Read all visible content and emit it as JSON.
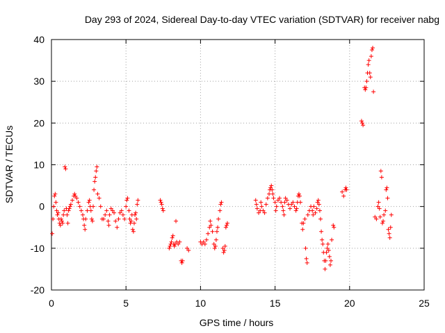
{
  "chart_data": {
    "type": "scatter",
    "title": "Day 293 of 2024, Sidereal Day-to-day VTEC variation (SDTVAR) for receiver nabg",
    "xlabel": "GPS time / hours",
    "ylabel": "SDTVAR / TECUs",
    "xlim": [
      0,
      25
    ],
    "ylim": [
      -20,
      40
    ],
    "xticks": [
      "0",
      "5",
      "10",
      "15",
      "20",
      "25"
    ],
    "yticks": [
      "-20",
      "-10",
      "0",
      "10",
      "20",
      "30",
      "40"
    ],
    "grid": true,
    "marker": "plus",
    "color": "#ff0000",
    "series": [
      {
        "name": "SDTVAR",
        "points": [
          [
            0.05,
            -6.5
          ],
          [
            0.1,
            -3
          ],
          [
            0.15,
            0
          ],
          [
            0.2,
            2.5
          ],
          [
            0.25,
            3
          ],
          [
            0.3,
            1
          ],
          [
            0.35,
            -1
          ],
          [
            0.4,
            -2
          ],
          [
            0.45,
            -1.5
          ],
          [
            0.5,
            -3
          ],
          [
            0.55,
            -4
          ],
          [
            0.6,
            -4.5
          ],
          [
            0.65,
            -3
          ],
          [
            0.7,
            -3.5
          ],
          [
            0.75,
            -4
          ],
          [
            0.8,
            -2
          ],
          [
            0.85,
            -1
          ],
          [
            0.9,
            9.5
          ],
          [
            0.95,
            9
          ],
          [
            1.0,
            -0.5
          ],
          [
            1.05,
            -2
          ],
          [
            1.1,
            -4
          ],
          [
            1.15,
            -1
          ],
          [
            1.2,
            -0.5
          ],
          [
            1.25,
            0
          ],
          [
            1.3,
            0.5
          ],
          [
            1.4,
            1.5
          ],
          [
            1.5,
            2.5
          ],
          [
            1.55,
            3
          ],
          [
            1.6,
            2.5
          ],
          [
            1.7,
            2
          ],
          [
            1.8,
            1
          ],
          [
            1.9,
            0
          ],
          [
            2.0,
            -1
          ],
          [
            2.1,
            -2
          ],
          [
            2.15,
            -3
          ],
          [
            2.2,
            -4.5
          ],
          [
            2.25,
            -5.5
          ],
          [
            2.3,
            -3
          ],
          [
            2.4,
            -1
          ],
          [
            2.5,
            1
          ],
          [
            2.55,
            1.5
          ],
          [
            2.6,
            0
          ],
          [
            2.65,
            -1
          ],
          [
            2.7,
            -3
          ],
          [
            2.75,
            -3.5
          ],
          [
            2.8,
            0
          ],
          [
            2.85,
            4
          ],
          [
            2.9,
            6
          ],
          [
            2.95,
            7
          ],
          [
            3.0,
            8.5
          ],
          [
            3.05,
            9.5
          ],
          [
            3.1,
            3
          ],
          [
            3.2,
            2
          ],
          [
            3.3,
            0
          ],
          [
            3.4,
            -3
          ],
          [
            3.5,
            -3
          ],
          [
            3.6,
            -2
          ],
          [
            3.7,
            -1
          ],
          [
            3.8,
            -3.5
          ],
          [
            3.85,
            -4.5
          ],
          [
            3.9,
            -2
          ],
          [
            4.0,
            -0.5
          ],
          [
            4.1,
            -1
          ],
          [
            4.2,
            -1.5
          ],
          [
            4.3,
            -3.5
          ],
          [
            4.4,
            -5
          ],
          [
            4.5,
            -3
          ],
          [
            4.6,
            -1.5
          ],
          [
            4.7,
            -1
          ],
          [
            4.8,
            -2
          ],
          [
            4.9,
            -3
          ],
          [
            5.0,
            0
          ],
          [
            5.05,
            1.5
          ],
          [
            5.1,
            2
          ],
          [
            5.2,
            -1
          ],
          [
            5.25,
            -3
          ],
          [
            5.3,
            -4
          ],
          [
            5.35,
            -3.5
          ],
          [
            5.4,
            -2
          ],
          [
            5.45,
            -5.5
          ],
          [
            5.5,
            -6
          ],
          [
            5.55,
            -4
          ],
          [
            5.6,
            -2
          ],
          [
            5.65,
            -1.5
          ],
          [
            5.7,
            -3
          ],
          [
            5.75,
            0.5
          ],
          [
            5.8,
            1.5
          ],
          [
            7.3,
            1.5
          ],
          [
            7.35,
            1
          ],
          [
            7.4,
            0.5
          ],
          [
            7.45,
            -0.5
          ],
          [
            7.5,
            -1
          ],
          [
            7.9,
            -10
          ],
          [
            7.95,
            -9.5
          ],
          [
            8.0,
            -9
          ],
          [
            8.05,
            -8.5
          ],
          [
            8.1,
            -7.5
          ],
          [
            8.15,
            -7
          ],
          [
            8.2,
            -9
          ],
          [
            8.25,
            -9.5
          ],
          [
            8.3,
            -9
          ],
          [
            8.35,
            -3.5
          ],
          [
            8.4,
            -8.5
          ],
          [
            8.5,
            -9
          ],
          [
            8.6,
            -8.5
          ],
          [
            8.7,
            -13
          ],
          [
            8.75,
            -13.5
          ],
          [
            8.8,
            -13
          ],
          [
            9.1,
            -10
          ],
          [
            9.2,
            -10.5
          ],
          [
            10.0,
            -8.5
          ],
          [
            10.1,
            -9
          ],
          [
            10.2,
            -8.5
          ],
          [
            10.3,
            -9
          ],
          [
            10.4,
            -8
          ],
          [
            10.5,
            -6.5
          ],
          [
            10.6,
            -5
          ],
          [
            10.65,
            -3.5
          ],
          [
            10.7,
            -4.5
          ],
          [
            10.8,
            -6
          ],
          [
            10.9,
            -9
          ],
          [
            10.95,
            -10
          ],
          [
            11.0,
            -9.5
          ],
          [
            11.05,
            -8
          ],
          [
            11.1,
            -6
          ],
          [
            11.15,
            -5
          ],
          [
            11.2,
            -3
          ],
          [
            11.3,
            -1
          ],
          [
            11.35,
            0.5
          ],
          [
            11.4,
            1
          ],
          [
            11.5,
            -10
          ],
          [
            11.55,
            -11
          ],
          [
            11.6,
            -10.5
          ],
          [
            11.65,
            -9.5
          ],
          [
            11.7,
            -5
          ],
          [
            11.75,
            -4.5
          ],
          [
            11.8,
            -4
          ],
          [
            13.7,
            1.5
          ],
          [
            13.75,
            0.5
          ],
          [
            13.8,
            -0.5
          ],
          [
            13.9,
            -1.5
          ],
          [
            14.0,
            -1
          ],
          [
            14.05,
            1
          ],
          [
            14.1,
            0
          ],
          [
            14.2,
            -1
          ],
          [
            14.3,
            -1.5
          ],
          [
            14.4,
            0.5
          ],
          [
            14.5,
            2
          ],
          [
            14.6,
            3
          ],
          [
            14.65,
            4
          ],
          [
            14.7,
            4.5
          ],
          [
            14.75,
            5
          ],
          [
            14.8,
            4
          ],
          [
            14.85,
            3
          ],
          [
            14.9,
            2
          ],
          [
            15.0,
            1
          ],
          [
            15.05,
            -1
          ],
          [
            15.1,
            0
          ],
          [
            15.2,
            1.5
          ],
          [
            15.3,
            2
          ],
          [
            15.4,
            1
          ],
          [
            15.5,
            0
          ],
          [
            15.55,
            -1
          ],
          [
            15.6,
            -2
          ],
          [
            15.65,
            1
          ],
          [
            15.7,
            2
          ],
          [
            15.8,
            1.5
          ],
          [
            15.9,
            0.5
          ],
          [
            16.0,
            -0.5
          ],
          [
            16.1,
            0.5
          ],
          [
            16.2,
            1
          ],
          [
            16.3,
            0
          ],
          [
            16.4,
            -1
          ],
          [
            16.45,
            -0.5
          ],
          [
            16.5,
            1
          ],
          [
            16.55,
            2.5
          ],
          [
            16.6,
            3
          ],
          [
            16.65,
            2.5
          ],
          [
            16.7,
            1
          ],
          [
            16.8,
            -4
          ],
          [
            16.85,
            -5.5
          ],
          [
            16.9,
            -4
          ],
          [
            17.0,
            -3
          ],
          [
            17.05,
            -10
          ],
          [
            17.1,
            -12.5
          ],
          [
            17.15,
            -13.5
          ],
          [
            17.2,
            -2
          ],
          [
            17.3,
            -1
          ],
          [
            17.4,
            0
          ],
          [
            17.5,
            -1
          ],
          [
            17.55,
            -2
          ],
          [
            17.6,
            0
          ],
          [
            17.7,
            -1.5
          ],
          [
            17.8,
            -0.5
          ],
          [
            17.85,
            1
          ],
          [
            17.9,
            1.5
          ],
          [
            17.95,
            0.5
          ],
          [
            18.0,
            -1
          ],
          [
            18.05,
            -3
          ],
          [
            18.1,
            -6
          ],
          [
            18.15,
            -8
          ],
          [
            18.2,
            -9
          ],
          [
            18.25,
            -11
          ],
          [
            18.3,
            -13
          ],
          [
            18.35,
            -15
          ],
          [
            18.4,
            -13
          ],
          [
            18.45,
            -11
          ],
          [
            18.5,
            -10
          ],
          [
            18.55,
            -9
          ],
          [
            18.6,
            -10.5
          ],
          [
            18.65,
            -12
          ],
          [
            18.7,
            -14
          ],
          [
            18.75,
            -13
          ],
          [
            18.8,
            -8
          ],
          [
            18.9,
            -4.5
          ],
          [
            18.95,
            -5
          ],
          [
            19.5,
            3.5
          ],
          [
            19.6,
            2.5
          ],
          [
            19.7,
            4
          ],
          [
            19.75,
            4.5
          ],
          [
            19.8,
            4
          ],
          [
            20.8,
            20.5
          ],
          [
            20.85,
            20
          ],
          [
            20.9,
            19.5
          ],
          [
            21.0,
            28.5
          ],
          [
            21.05,
            28
          ],
          [
            21.1,
            28.5
          ],
          [
            21.15,
            30
          ],
          [
            21.2,
            32
          ],
          [
            21.25,
            34
          ],
          [
            21.3,
            35
          ],
          [
            21.35,
            32
          ],
          [
            21.4,
            31
          ],
          [
            21.45,
            36
          ],
          [
            21.5,
            37.5
          ],
          [
            21.55,
            38
          ],
          [
            21.6,
            27.5
          ],
          [
            21.7,
            -2.5
          ],
          [
            21.8,
            -3
          ],
          [
            21.9,
            0
          ],
          [
            21.95,
            1
          ],
          [
            22.0,
            -0.5
          ],
          [
            22.05,
            -2.5
          ],
          [
            22.1,
            8.5
          ],
          [
            22.15,
            7
          ],
          [
            22.2,
            -4
          ],
          [
            22.25,
            -3.5
          ],
          [
            22.3,
            -2
          ],
          [
            22.4,
            -1
          ],
          [
            22.45,
            4
          ],
          [
            22.5,
            4.5
          ],
          [
            22.55,
            2
          ],
          [
            22.6,
            -5.5
          ],
          [
            22.65,
            -6.5
          ],
          [
            22.7,
            -7.5
          ],
          [
            22.75,
            -5
          ],
          [
            22.8,
            -2
          ]
        ]
      }
    ]
  }
}
